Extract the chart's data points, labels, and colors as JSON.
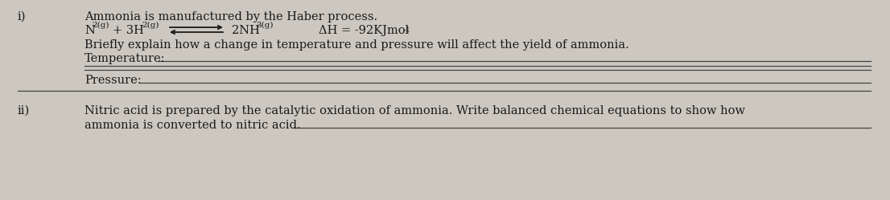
{
  "bg_color": "#ccc8c0",
  "text_color": "#1a1a1a",
  "line_color": "#444444",
  "roman_i": "i)",
  "roman_ii": "ii)",
  "line1": "Ammonia is manufactured by the Haber process.",
  "line3": "Briefly explain how a change in temperature and pressure will affect the yield of ammonia.",
  "temp_label": "Temperature:",
  "pressure_label": "Pressure:",
  "line_ii": "Nitric acid is prepared by the catalytic oxidation of ammonia. Write balanced chemical equations to show how",
  "line_ii2": "ammonia is converted to nitric acid.",
  "dH_text": "ΔH = -92KJmol",
  "fs_main": 10.5,
  "fs_sub": 7.5,
  "fs_super": 7.5
}
